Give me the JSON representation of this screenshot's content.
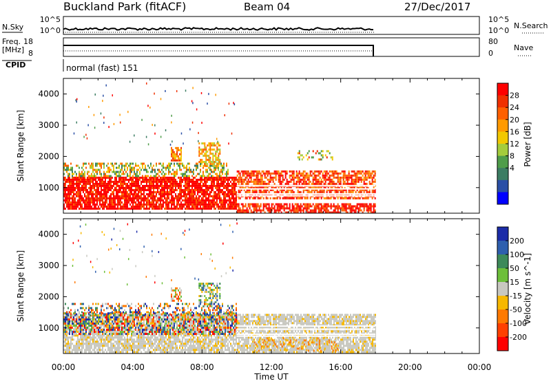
{
  "header": {
    "station": "Buckland Park (fitACF)",
    "beam": "Beam 04",
    "date": "27/Dec/2017"
  },
  "noise_panel": {
    "left_label": "N.Sky",
    "right_label": "N.Search",
    "ticks_left": [
      "10^5",
      "10^0"
    ],
    "ticks_right": [
      "10^5",
      "10^0"
    ]
  },
  "freq_panel": {
    "left_label_1": "Freq.",
    "left_label_2": "[MHz]",
    "right_label": "Nave",
    "ticks_left": [
      "18",
      "8"
    ],
    "ticks_right": [
      "80",
      "0"
    ]
  },
  "cpid": {
    "label": "CPID",
    "value": "normal (fast) 151"
  },
  "x_axis": {
    "label": "Time UT",
    "ticks": [
      "00:00",
      "04:00",
      "08:00",
      "12:00",
      "16:00",
      "20:00",
      "00:00"
    ],
    "range_hours": [
      0,
      24
    ]
  },
  "chart_data": [
    {
      "type": "heatmap",
      "name": "power",
      "ylabel": "Slant Range [km]",
      "ylim": [
        180,
        4500
      ],
      "yticks": [
        1000,
        2000,
        3000,
        4000
      ],
      "colorbar_label": "Power [dB]",
      "colorbar_ticks": [
        "28",
        "24",
        "20",
        "16",
        "12",
        "8",
        "4"
      ],
      "colorbar_colors": [
        "#ff0000",
        "#f03000",
        "#ff6000",
        "#ff9a00",
        "#f2c800",
        "#a4cc3c",
        "#4f9d4a",
        "#3c7d63",
        "#2a4fa6",
        "#0000ff"
      ],
      "time_coverage_hours": [
        0,
        18
      ],
      "regions": [
        {
          "t": [
            0.0,
            10.0
          ],
          "r": [
            350,
            1400
          ],
          "value": "28+"
        },
        {
          "t": [
            10.0,
            18.0
          ],
          "r": [
            650,
            1550
          ],
          "value": "20-28"
        },
        {
          "t": [
            10.0,
            18.0
          ],
          "r": [
            200,
            500
          ],
          "value": "28+"
        },
        {
          "t": [
            0.0,
            9.5
          ],
          "r": [
            1400,
            1800
          ],
          "value": "8-20"
        },
        {
          "t": [
            6.2,
            6.8
          ],
          "r": [
            1850,
            2300
          ],
          "value": "16-24"
        },
        {
          "t": [
            7.8,
            9.0
          ],
          "r": [
            1700,
            2450
          ],
          "value": "16-24"
        }
      ]
    },
    {
      "type": "heatmap",
      "name": "velocity",
      "ylabel": "Slant Range [km]",
      "ylim": [
        180,
        4500
      ],
      "yticks": [
        1000,
        2000,
        3000,
        4000
      ],
      "colorbar_label": "Velocity [m s^-1]",
      "colorbar_ticks": [
        "200",
        "100",
        "50",
        "15",
        "-15",
        "-50",
        "-100",
        "-200"
      ],
      "colorbar_colors": [
        "#1c2ca8",
        "#2e5fae",
        "#3d8a5a",
        "#6dbf3a",
        "#c8c8c0",
        "#f7b800",
        "#ff7a00",
        "#ff4000",
        "#ff0000"
      ],
      "time_coverage_hours": [
        0,
        18
      ],
      "regions": [
        {
          "t": [
            0.0,
            18.0
          ],
          "r": [
            200,
            1500
          ],
          "value": "-15 to 15"
        },
        {
          "t": [
            0.0,
            10.0
          ],
          "r": [
            800,
            1500
          ],
          "value": "mixed"
        },
        {
          "t": [
            11.0,
            16.0
          ],
          "r": [
            200,
            700
          ],
          "value": "-50 to -15"
        }
      ]
    }
  ]
}
